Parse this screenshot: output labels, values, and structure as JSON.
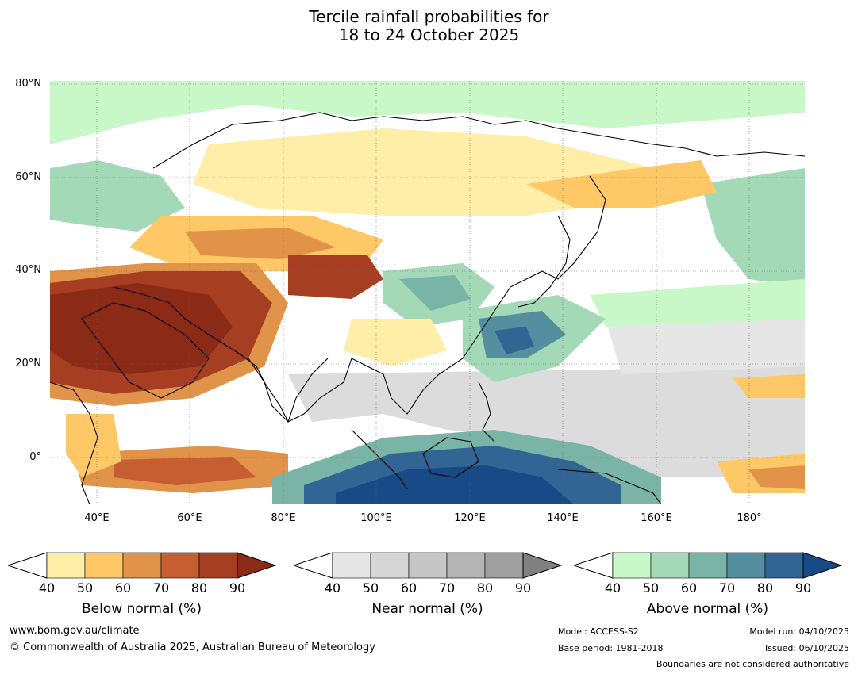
{
  "title": {
    "line1": "Tercile rainfall probabilities for",
    "line2": "18 to 24 October 2025"
  },
  "lat_labels": [
    "80°N",
    "60°N",
    "40°N",
    "20°N",
    "0°"
  ],
  "lon_labels": [
    "40°E",
    "60°E",
    "80°E",
    "100°E",
    "120°E",
    "140°E",
    "160°E",
    "180°"
  ],
  "colorbars": {
    "below": {
      "title": "Below normal (%)",
      "ticks": [
        "40",
        "50",
        "60",
        "70",
        "80",
        "90"
      ],
      "colors": [
        "#ffeea8",
        "#fdc865",
        "#e19449",
        "#c65e32",
        "#a63e22",
        "#8b2a17"
      ]
    },
    "near": {
      "title": "Near normal (%)",
      "ticks": [
        "40",
        "50",
        "60",
        "70",
        "80",
        "90"
      ],
      "colors": [
        "#e6e6e6",
        "#d6d6d6",
        "#c6c6c6",
        "#b4b4b4",
        "#a0a0a0",
        "#808080"
      ]
    },
    "above": {
      "title": "Above normal (%)",
      "ticks": [
        "40",
        "50",
        "60",
        "70",
        "80",
        "90"
      ],
      "colors": [
        "#c8f8c8",
        "#a4d9b7",
        "#7ab4a7",
        "#558e9e",
        "#326594",
        "#174a86"
      ]
    }
  },
  "footer": {
    "website": "www.bom.gov.au/climate",
    "copyright": "© Commonwealth of Australia 2025, Australian Bureau of Meteorology",
    "model": "Model: ACCESS-S2",
    "base_period": "Base period: 1981-2018",
    "model_run": "Model run: 04/10/2025",
    "issued": "Issued: 06/10/2025",
    "disclaimer": "Boundaries are not considered authoritative"
  }
}
